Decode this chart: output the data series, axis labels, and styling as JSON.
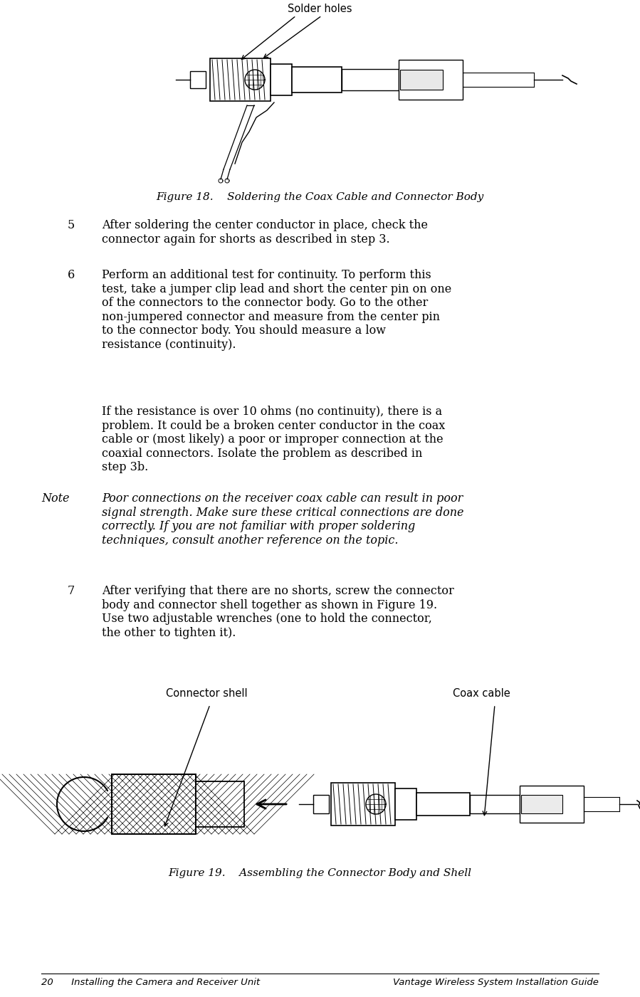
{
  "bg_color": "#ffffff",
  "text_color": "#000000",
  "page_width": 8.99,
  "page_height": 14.01,
  "footer_left": "20      Installing the Camera and Receiver Unit",
  "footer_right": "Vantage Wireless System Installation Guide",
  "fig18_caption": "Figure 18.    Soldering the Coax Cable and Connector Body",
  "fig19_caption": "Figure 19.    Assembling the Connector Body and Shell",
  "label_solder_holes": "Solder holes",
  "label_connector_shell": "Connector shell",
  "label_coax_cable": "Coax cable",
  "step5_num": "5",
  "step5_text": "After soldering the center conductor in place, check the\nconnector again for shorts as described in step 3.",
  "step6_num": "6",
  "step6_text": "Perform an additional test for continuity. To perform this\ntest, take a jumper clip lead and short the center pin on one\nof the connectors to the connector body. Go to the other\nnon-jumpered connector and measure from the center pin\nto the connector body. You should measure a low\nresistance (continuity).",
  "step6b_text": "If the resistance is over 10 ohms (no continuity), there is a\nproblem. It could be a broken center conductor in the coax\ncable or (most likely) a poor or improper connection at the\ncoaxial connectors. Isolate the problem as described in\nstep 3b.",
  "note_label": "Note",
  "note_text": "Poor connections on the receiver coax cable can result in poor\nsignal strength. Make sure these critical connections are done\ncorrectly. If you are not familiar with proper soldering\ntechniques, consult another reference on the topic.",
  "step7_num": "7",
  "step7_text": "After verifying that there are no shorts, screw the connector\nbody and connector shell together as shown in Figure 19.\nUse two adjustable wrenches (one to hold the connector,\nthe other to tighten it).",
  "body_fontsize": 11.5,
  "caption_fontsize": 11,
  "footer_fontsize": 9.5,
  "note_fontsize": 11.5,
  "label_fontsize": 10.5
}
